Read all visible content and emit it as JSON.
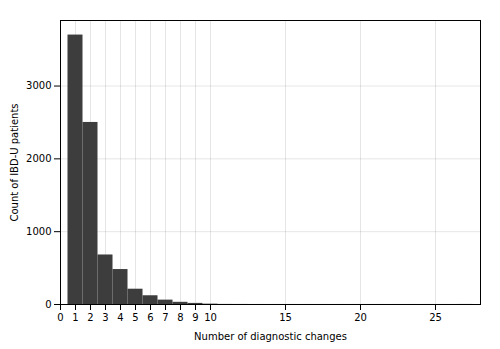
{
  "chart_data": {
    "type": "bar",
    "x": [
      1,
      2,
      3,
      4,
      5,
      6,
      7,
      8,
      9,
      10,
      11,
      12,
      13,
      14,
      15,
      16,
      17,
      18,
      19,
      20,
      21,
      22,
      23,
      24,
      25,
      26,
      27
    ],
    "values": [
      3700,
      2500,
      680,
      480,
      210,
      120,
      60,
      30,
      15,
      5,
      3,
      2,
      1,
      1,
      1,
      1,
      1,
      1,
      1,
      1,
      1,
      1,
      1,
      1,
      1,
      1,
      2
    ],
    "colors": [
      "#3d3d3d",
      "#3d3d3d",
      "#3d3d3d",
      "#3d3d3d",
      "#3d3d3d",
      "#3d3d3d",
      "#3d3d3d",
      "#3d3d3d",
      "#3d3d3d",
      "#3d3d3d",
      "#b0b0b0",
      "#b0b0b0",
      "#b0b0b0",
      "#b0b0b0",
      "#b0b0b0",
      "#b0b0b0",
      "#b0b0b0",
      "#b0b0b0",
      "#b0b0b0",
      "#b0b0b0",
      "#b0b0b0",
      "#b0b0b0",
      "#b0b0b0",
      "#b0b0b0",
      "#b0b0b0",
      "#b0b0b0",
      "#b0b0b0"
    ],
    "xlabel": "Number of diagnostic changes",
    "ylabel": "Count of IBD-U patients",
    "xlim": [
      0,
      28
    ],
    "xticks": [
      0,
      1,
      2,
      3,
      4,
      5,
      6,
      7,
      8,
      9,
      10,
      15,
      20,
      25
    ],
    "ylim": [
      0,
      3900
    ],
    "yticks": [
      0,
      1000,
      2000,
      3000
    ],
    "grid": true
  }
}
